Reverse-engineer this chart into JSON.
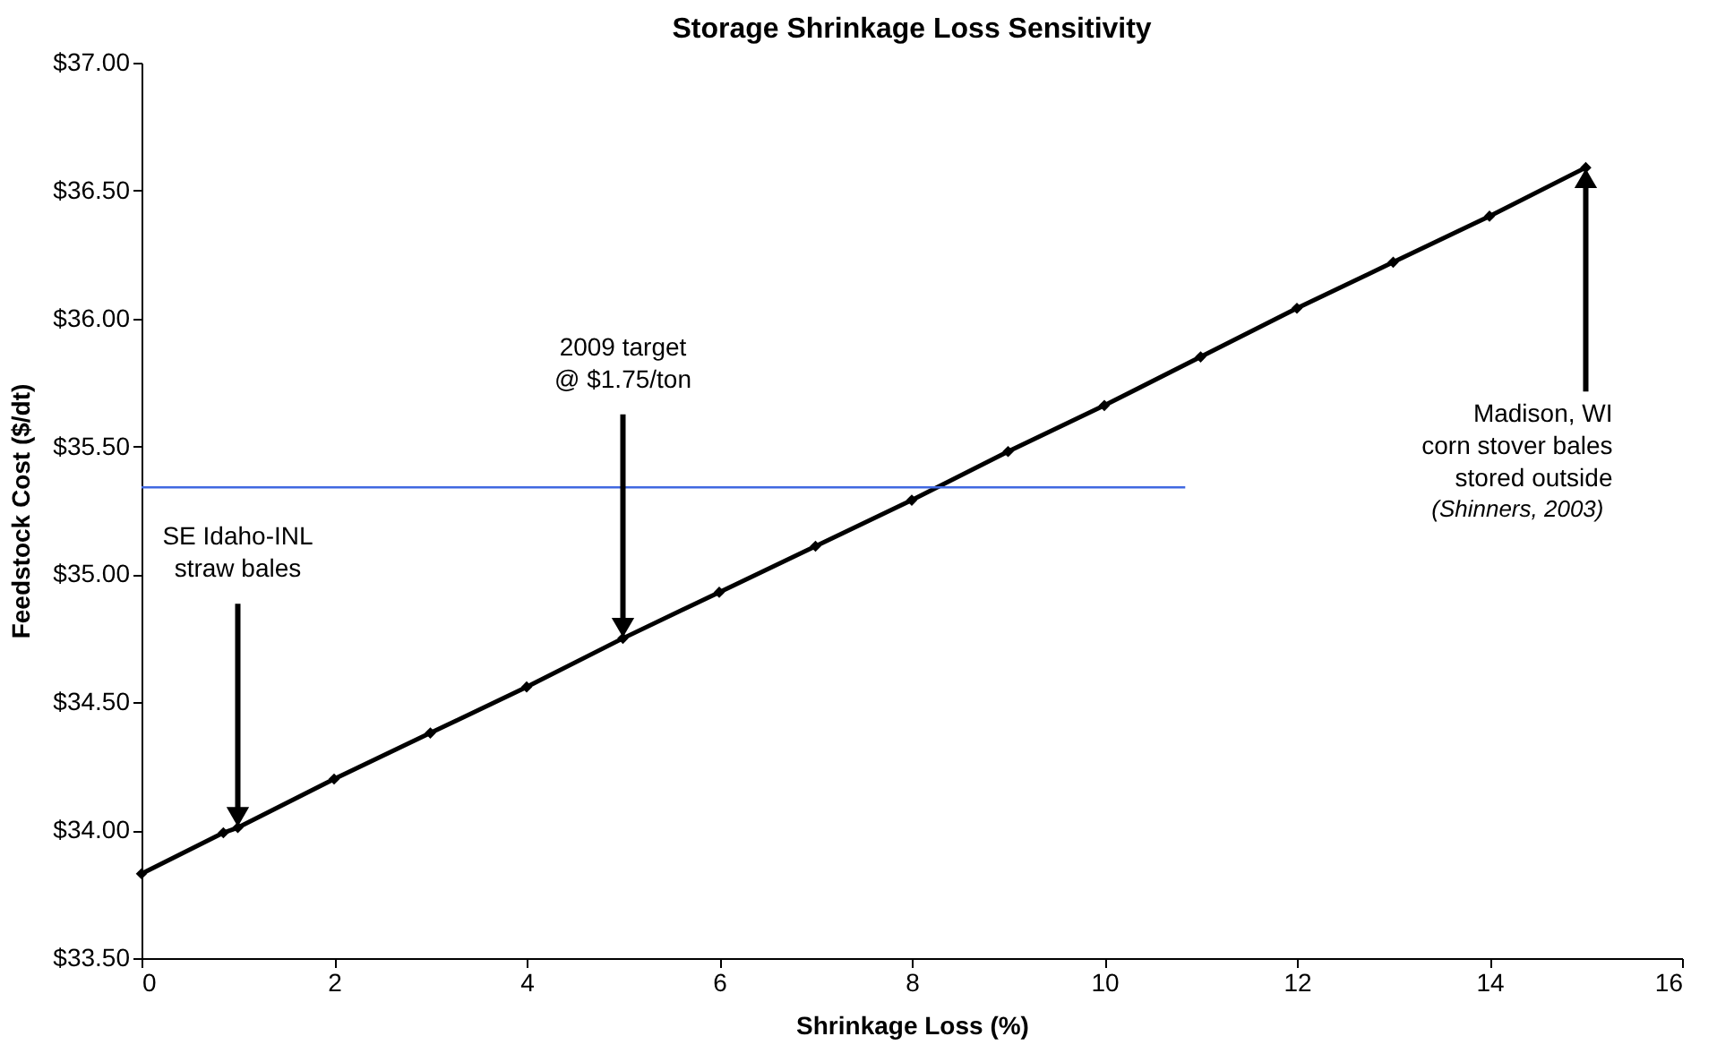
{
  "chart_data": {
    "type": "line",
    "title": "Storage Shrinkage Loss Sensitivity",
    "xlabel": "Shrinkage Loss (%)",
    "ylabel": "Feedstock Cost ($/dt)",
    "series": [
      {
        "color": "#000000",
        "marker": "diamond",
        "x": [
          0,
          0.85,
          1,
          2,
          3,
          4,
          5,
          6,
          7,
          8,
          9,
          10,
          11,
          12,
          13,
          14,
          15
        ],
        "values": [
          33.83,
          33.99,
          34.01,
          34.2,
          34.38,
          34.56,
          34.75,
          34.93,
          35.11,
          35.29,
          35.48,
          35.66,
          35.85,
          36.04,
          36.22,
          36.4,
          36.59
        ]
      },
      {
        "color": "#4169e1",
        "marker": "none",
        "x": [
          0,
          10.84
        ],
        "values": [
          35.34,
          35.34
        ]
      }
    ],
    "xlim": [
      0,
      16
    ],
    "xticks": [
      0,
      2,
      4,
      6,
      8,
      10,
      12,
      14,
      16
    ],
    "ylim": [
      33.5,
      37.0
    ],
    "yticks": [
      {
        "value": 33.5,
        "label": "$33.50"
      },
      {
        "value": 34.0,
        "label": "$34.00"
      },
      {
        "value": 34.5,
        "label": "$34.50"
      },
      {
        "value": 35.0,
        "label": "$35.00"
      },
      {
        "value": 35.5,
        "label": "$35.50"
      },
      {
        "value": 36.0,
        "label": "$36.00"
      },
      {
        "value": 36.5,
        "label": "$36.50"
      },
      {
        "value": 37.0,
        "label": "$37.00"
      }
    ],
    "grid": false,
    "annotations": [
      {
        "text": "SE Idaho-INL\nstraw bales",
        "x": 1,
        "y": 34.01
      },
      {
        "text": "2009 target\n@ $1.75/ton",
        "x": 5,
        "y": 34.75
      },
      {
        "text": "Madison, WI\ncorn stover bales\nstored outside",
        "x": 15,
        "y": 36.59
      },
      "(Shinners, 2003)"
    ]
  }
}
